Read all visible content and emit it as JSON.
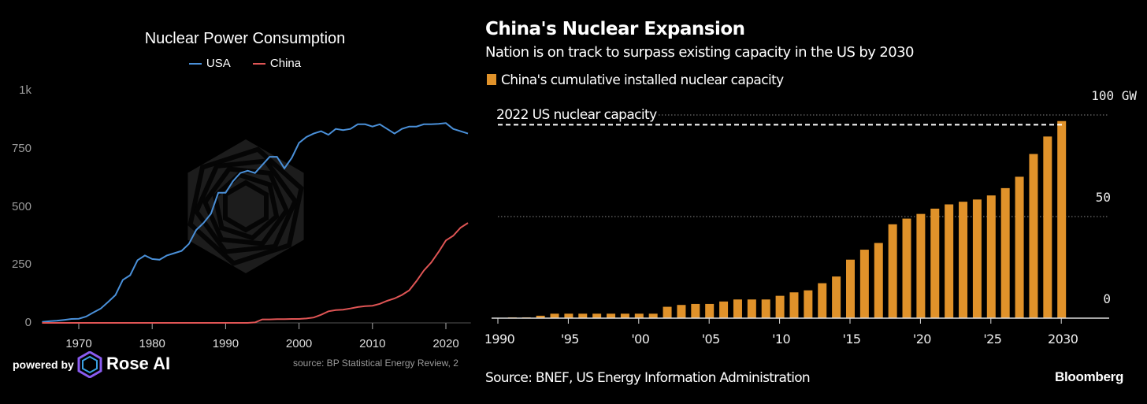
{
  "chart_data": [
    {
      "type": "line",
      "title": "Nuclear Power Consumption",
      "xlabel": "",
      "ylabel": "",
      "xlim": [
        1965,
        2023.4
      ],
      "ylim": [
        0,
        1000
      ],
      "yticks": [
        {
          "v": 0,
          "label": "0"
        },
        {
          "v": 250,
          "label": "250"
        },
        {
          "v": 500,
          "label": "500"
        },
        {
          "v": 750,
          "label": "750"
        },
        {
          "v": 1000,
          "label": "1k"
        }
      ],
      "xticks": [
        1970,
        1980,
        1990,
        2000,
        2010,
        2020
      ],
      "legend_position": "top-center",
      "x": [
        1965,
        1966,
        1967,
        1968,
        1969,
        1970,
        1971,
        1972,
        1973,
        1974,
        1975,
        1976,
        1977,
        1978,
        1979,
        1980,
        1981,
        1982,
        1983,
        1984,
        1985,
        1986,
        1987,
        1988,
        1989,
        1990,
        1991,
        1992,
        1993,
        1994,
        1995,
        1996,
        1997,
        1998,
        1999,
        2000,
        2001,
        2002,
        2003,
        2004,
        2005,
        2006,
        2007,
        2008,
        2009,
        2010,
        2011,
        2012,
        2013,
        2014,
        2015,
        2016,
        2017,
        2018,
        2019,
        2020,
        2021,
        2022,
        2023
      ],
      "series": [
        {
          "name": "USA",
          "color": "#4a90d9",
          "values": [
            4,
            7,
            9,
            13,
            17,
            18,
            27,
            45,
            62,
            90,
            120,
            185,
            205,
            270,
            290,
            275,
            272,
            290,
            300,
            310,
            340,
            400,
            430,
            470,
            560,
            560,
            610,
            645,
            655,
            645,
            680,
            715,
            715,
            665,
            710,
            775,
            800,
            815,
            825,
            810,
            835,
            830,
            835,
            855,
            855,
            845,
            855,
            835,
            815,
            835,
            845,
            845,
            855,
            855,
            857,
            860,
            835,
            825,
            815
          ]
        },
        {
          "name": "China",
          "color": "#e05555",
          "values": [
            0,
            0,
            0,
            0,
            0,
            0,
            0,
            0,
            0,
            0,
            0,
            0,
            0,
            0,
            0,
            0,
            0,
            0,
            0,
            0,
            0,
            0,
            0,
            0,
            0,
            0,
            0,
            0,
            0,
            2,
            15,
            15,
            16,
            16,
            17,
            17,
            19,
            23,
            35,
            50,
            55,
            57,
            62,
            68,
            72,
            74,
            82,
            95,
            105,
            120,
            140,
            180,
            225,
            260,
            305,
            355,
            375,
            410,
            430
          ]
        }
      ],
      "source": "source: BP Statistical Energy Review, 2",
      "branding": {
        "powered_by": "powered by",
        "name": "Rose AI"
      }
    },
    {
      "type": "bar",
      "title": "China's Nuclear Expansion",
      "subtitle": "Nation is on track to surpass existing capacity in the US by 2030",
      "legend": "China's cumulative installed nuclear capacity",
      "color": "#e0922a",
      "ylim": [
        0,
        100
      ],
      "yunit": "GW",
      "yticks": [
        {
          "v": 0,
          "label": "0"
        },
        {
          "v": 50,
          "label": "50"
        },
        {
          "v": 100,
          "label": "100 GW"
        }
      ],
      "xticks": [
        {
          "v": 1990,
          "label": "1990"
        },
        {
          "v": 1995,
          "label": "'95"
        },
        {
          "v": 2000,
          "label": "'00"
        },
        {
          "v": 2005,
          "label": "'05"
        },
        {
          "v": 2010,
          "label": "'10"
        },
        {
          "v": 2015,
          "label": "'15"
        },
        {
          "v": 2020,
          "label": "'20"
        },
        {
          "v": 2025,
          "label": "'25"
        },
        {
          "v": 2030,
          "label": "2030"
        }
      ],
      "categories": [
        1990,
        1991,
        1992,
        1993,
        1994,
        1995,
        1996,
        1997,
        1998,
        1999,
        2000,
        2001,
        2002,
        2003,
        2004,
        2005,
        2006,
        2007,
        2008,
        2009,
        2010,
        2011,
        2012,
        2013,
        2014,
        2015,
        2016,
        2017,
        2018,
        2019,
        2020,
        2021,
        2022,
        2023,
        2024,
        2025,
        2026,
        2027,
        2028,
        2029,
        2030
      ],
      "values": [
        0.2,
        0.4,
        0.4,
        1.2,
        2.2,
        2.2,
        2.2,
        2.2,
        2.2,
        2.2,
        2.2,
        2.2,
        5.6,
        6.5,
        7.0,
        7.0,
        8.2,
        9.2,
        9.2,
        9.2,
        11.0,
        12.7,
        13.7,
        17.2,
        20.5,
        28.8,
        33.7,
        37.0,
        46.2,
        49.0,
        51.3,
        53.9,
        56.0,
        57.3,
        58.4,
        60.4,
        64.0,
        69.6,
        80.8,
        89.4,
        97.0
      ],
      "annotation": {
        "label": "2022 US nuclear capacity",
        "value": 95.2
      },
      "source": "Source: BNEF, US Energy Information Administration",
      "branding": "Bloomberg"
    }
  ]
}
